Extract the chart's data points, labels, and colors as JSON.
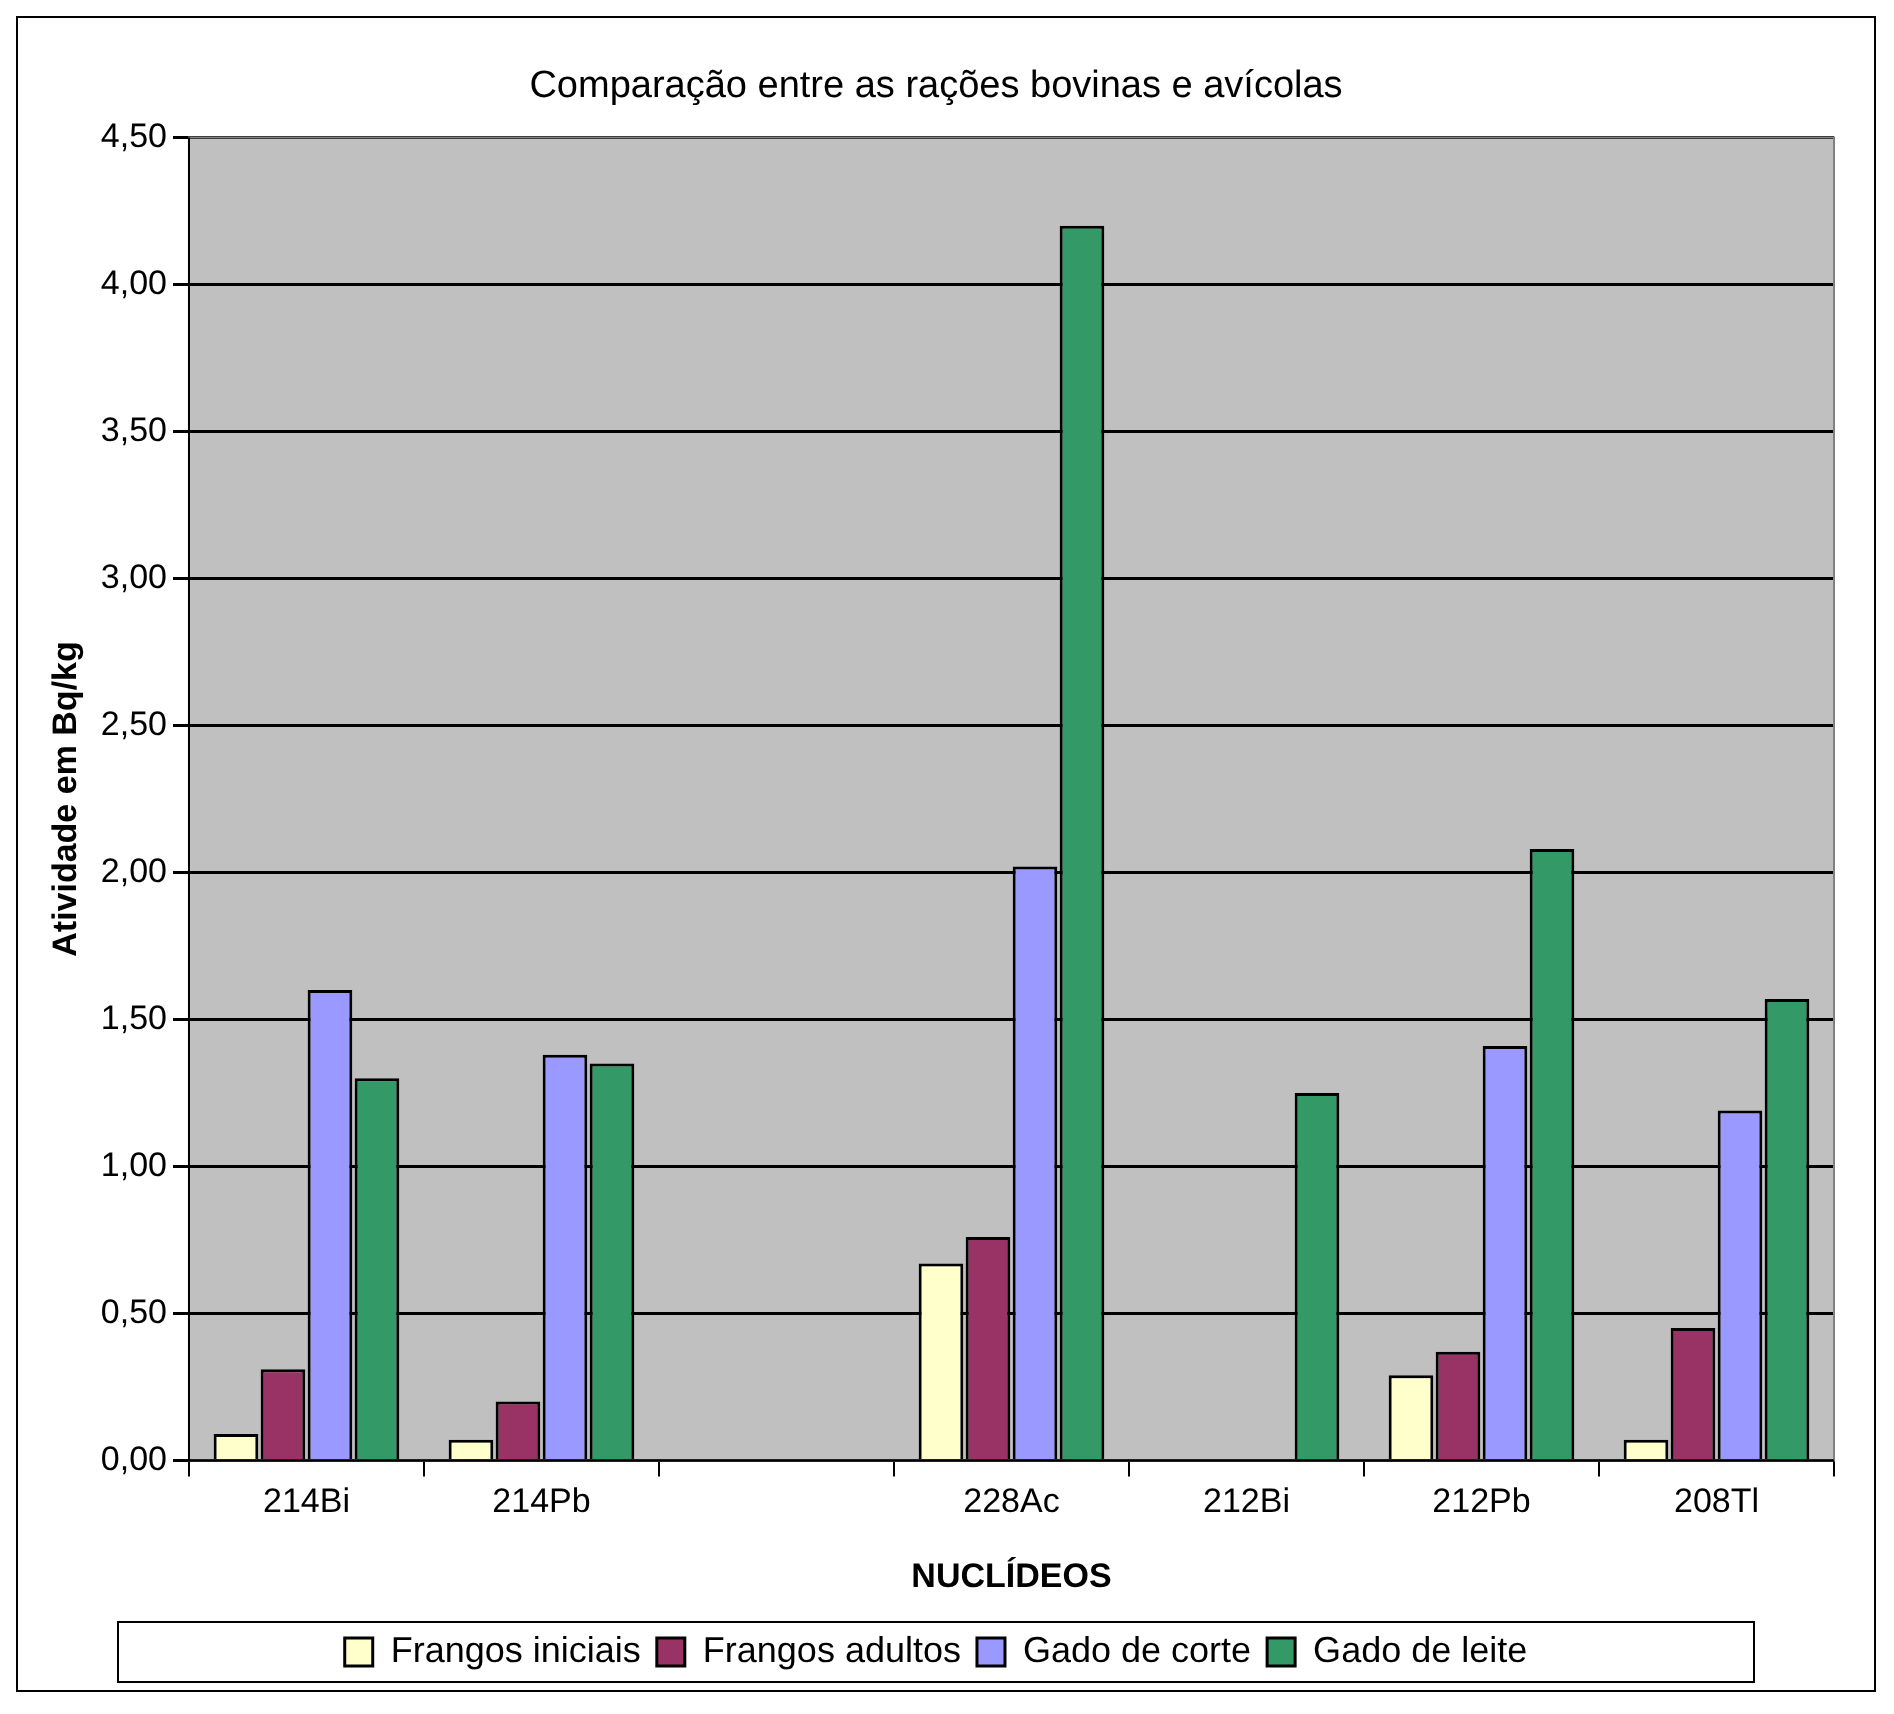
{
  "chart_data": {
    "type": "bar",
    "title": "Comparação entre as rações bovinas e avícolas",
    "xlabel": "NUCLÍDEOS",
    "ylabel": "Atividade em Bq/kg",
    "categories": [
      "214Bi",
      "214Pb",
      null,
      "228Ac",
      "212Bi",
      "212Pb",
      "208Tl"
    ],
    "series": [
      {
        "name": "Frangos iniciais",
        "color": "#ffffcc",
        "values": [
          0.09,
          0.07,
          null,
          0.67,
          null,
          0.29,
          0.07
        ]
      },
      {
        "name": "Frangos adultos",
        "color": "#993366",
        "values": [
          0.31,
          0.2,
          null,
          0.76,
          null,
          0.37,
          0.45
        ]
      },
      {
        "name": "Gado de corte",
        "color": "#9999ff",
        "values": [
          1.6,
          1.38,
          null,
          2.02,
          null,
          1.41,
          1.19
        ]
      },
      {
        "name": "Gado de leite",
        "color": "#339966",
        "values": [
          1.3,
          1.35,
          null,
          4.2,
          1.25,
          2.08,
          1.57
        ]
      }
    ],
    "ylim": [
      0,
      4.5
    ],
    "yticks": [
      {
        "value": 0,
        "label": "0,00"
      },
      {
        "value": 0.5,
        "label": "0,50"
      },
      {
        "value": 1,
        "label": "1,00"
      },
      {
        "value": 1.5,
        "label": "1,50"
      },
      {
        "value": 2,
        "label": "2,00"
      },
      {
        "value": 2.5,
        "label": "2,50"
      },
      {
        "value": 3,
        "label": "3,00"
      },
      {
        "value": 3.5,
        "label": "3,50"
      },
      {
        "value": 4,
        "label": "4,00"
      },
      {
        "value": 4.5,
        "label": "4,50"
      }
    ],
    "grid": "y",
    "legend": "bottom"
  }
}
